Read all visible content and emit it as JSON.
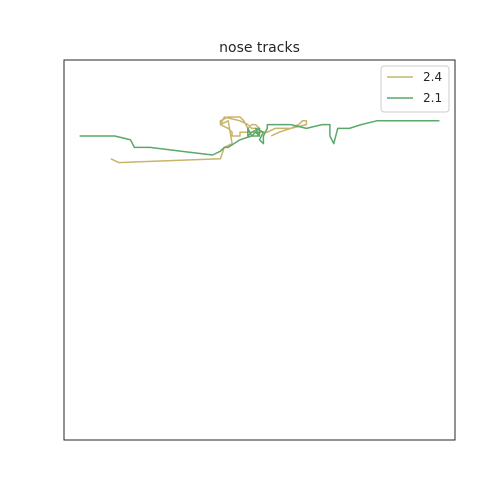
{
  "chart_data": {
    "type": "line",
    "title": "nose tracks",
    "xlabel": "",
    "ylabel": "",
    "grid": false,
    "axes_ticks": false,
    "xlim": [
      0,
      100
    ],
    "ylim": [
      0,
      100
    ],
    "legend_position": "top-right",
    "series": [
      {
        "name": "2.4",
        "color": "#c8b46a",
        "points": [
          [
            12,
            74
          ],
          [
            14,
            73
          ],
          [
            40,
            74
          ],
          [
            41,
            77
          ],
          [
            43,
            78
          ],
          [
            42,
            84
          ],
          [
            40,
            83
          ],
          [
            41,
            85
          ],
          [
            45,
            84
          ],
          [
            47,
            83
          ],
          [
            48,
            82
          ],
          [
            50,
            82
          ],
          [
            49,
            83
          ],
          [
            48,
            83
          ],
          [
            47,
            82
          ],
          [
            46,
            84
          ],
          [
            45,
            85
          ],
          [
            42,
            85
          ],
          [
            40,
            84
          ],
          [
            40,
            83
          ],
          [
            42,
            82
          ],
          [
            43,
            81
          ],
          [
            43,
            80
          ],
          [
            45,
            80
          ],
          [
            45,
            81
          ],
          [
            47,
            81
          ],
          [
            50,
            81
          ],
          [
            52,
            81
          ],
          [
            54,
            82
          ],
          [
            58,
            82
          ],
          [
            60,
            83
          ],
          [
            61,
            84
          ],
          [
            62,
            84
          ],
          [
            62,
            83
          ],
          [
            58,
            82
          ],
          [
            55,
            81
          ],
          [
            53,
            80
          ]
        ]
      },
      {
        "name": "2.1",
        "color": "#5aa96a",
        "points": [
          [
            4,
            80
          ],
          [
            8,
            80
          ],
          [
            13,
            80
          ],
          [
            17,
            79
          ],
          [
            18,
            77
          ],
          [
            22,
            77
          ],
          [
            30,
            76
          ],
          [
            38,
            75
          ],
          [
            40,
            76
          ],
          [
            41,
            77
          ],
          [
            42,
            77
          ],
          [
            45,
            79
          ],
          [
            48,
            80
          ],
          [
            50,
            80
          ],
          [
            50,
            82
          ],
          [
            48,
            81
          ],
          [
            47,
            80
          ],
          [
            47,
            82
          ],
          [
            48,
            80
          ],
          [
            49,
            81
          ],
          [
            50,
            80
          ],
          [
            49,
            82
          ],
          [
            51,
            81
          ],
          [
            50,
            79
          ],
          [
            51,
            78
          ],
          [
            51,
            80
          ],
          [
            52,
            82
          ],
          [
            52,
            83
          ],
          [
            58,
            83
          ],
          [
            62,
            82
          ],
          [
            66,
            83
          ],
          [
            68,
            83
          ],
          [
            68,
            80
          ],
          [
            69,
            78
          ],
          [
            70,
            82
          ],
          [
            73,
            82
          ],
          [
            76,
            83
          ],
          [
            80,
            84
          ],
          [
            88,
            84
          ],
          [
            96,
            84
          ]
        ]
      }
    ]
  }
}
